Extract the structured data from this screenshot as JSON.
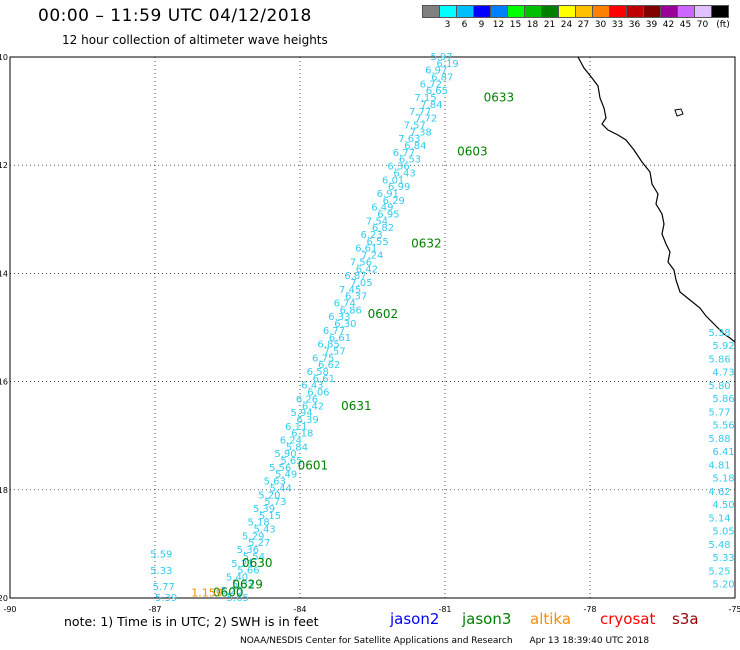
{
  "title": "00:00 – 11:59 UTC 04/12/2018",
  "subtitle": "12 hour collection of altimeter wave heights",
  "legend": {
    "unit": "(ft)",
    "colors": [
      "#808080",
      "#00ffff",
      "#00bfff",
      "#0000ff",
      "#0080ff",
      "#00ff00",
      "#00c000",
      "#008000",
      "#ffff00",
      "#ffc000",
      "#ff8000",
      "#ff0000",
      "#c00000",
      "#800000",
      "#990099",
      "#cc66ff",
      "#e0c0ff",
      "#000000"
    ],
    "labels": [
      "3",
      "6",
      "9",
      "12",
      "15",
      "18",
      "21",
      "24",
      "27",
      "30",
      "33",
      "36",
      "39",
      "42",
      "45",
      "70"
    ]
  },
  "axes": {
    "lon_labels": [
      "-90",
      "-87",
      "-84",
      "-81",
      "-78",
      "-75"
    ],
    "lat_labels": [
      "-10",
      "-12",
      "-14",
      "-16",
      "-18",
      "-20"
    ]
  },
  "track": {
    "color": "#33ccee",
    "heights": [
      "5.97",
      "6.19",
      "6.97",
      "6.87",
      "6.72",
      "6.65",
      "7.15",
      "7.84",
      "7.77",
      "7.72",
      "7.57",
      "7.38",
      "7.63",
      "6.84",
      "6.77",
      "6.53",
      "6.36",
      "6.43",
      "6.01",
      "6.99",
      "6.91",
      "6.29",
      "6.49",
      "6.95",
      "7.54",
      "6.82",
      "6.23",
      "6.55",
      "6.61",
      "7.24",
      "7.56",
      "6.42",
      "6.87",
      "7.05",
      "7.45",
      "6.37",
      "6.74",
      "6.86",
      "6.33",
      "6.30",
      "6.77",
      "6.61",
      "6.85",
      "7.57",
      "6.75",
      "6.62",
      "6.58",
      "6.61",
      "6.43",
      "6.06",
      "6.26",
      "6.42",
      "5.94",
      "6.39",
      "6.11",
      "6.18",
      "6.24",
      "5.84",
      "5.90",
      "5.65",
      "5.56",
      "5.49",
      "5.63",
      "5.44",
      "5.20",
      "5.73",
      "5.39",
      "5.15",
      "5.18",
      "5.43",
      "5.29",
      "5.27",
      "5.36",
      "5.54",
      "5.21",
      "5.66",
      "5.40",
      "5.33",
      "5.25",
      "5.65"
    ]
  },
  "time_labels": [
    {
      "text": "0633",
      "lon": -80.2,
      "lat": -10.75
    },
    {
      "text": "0603",
      "lon": -80.75,
      "lat": -11.75
    },
    {
      "text": "0632",
      "lon": -81.7,
      "lat": -13.45
    },
    {
      "text": "0602",
      "lon": -82.6,
      "lat": -14.75
    },
    {
      "text": "0631",
      "lon": -83.15,
      "lat": -16.45
    },
    {
      "text": "0601",
      "lon": -84.05,
      "lat": -17.55
    },
    {
      "text": "0630",
      "lon": -85.2,
      "lat": -19.35
    },
    {
      "text": "0629",
      "lon": -85.4,
      "lat": -19.75
    },
    {
      "text": "0600",
      "lon": -85.8,
      "lat": -19.9
    }
  ],
  "west_values": {
    "color": "#33ccee",
    "points": [
      {
        "text": "5.59",
        "lon": -87.1,
        "lat": -19.2
      },
      {
        "text": "5.33",
        "lon": -87.1,
        "lat": -19.5
      },
      {
        "text": "5.77",
        "lon": -87.05,
        "lat": -19.8
      },
      {
        "text": "5.39",
        "lon": -87.0,
        "lat": -20.0
      }
    ]
  },
  "altika_value": {
    "text": "1.159",
    "color": "#ff8c00",
    "lon": -86.25,
    "lat": -19.92
  },
  "east_track": {
    "color": "#33ccee",
    "values": [
      "5.38",
      "5.92",
      "5.86",
      "4.73",
      "5.80",
      "5.86",
      "5.77",
      "5.56",
      "5.88",
      "6.41",
      "4.81",
      "5.18",
      "4.62",
      "4.50",
      "5.14",
      "5.05",
      "5.48",
      "5.33",
      "5.25",
      "5.20"
    ]
  },
  "footer_note": "note: 1) Time is in UTC; 2) SWH is in feet",
  "satellites": [
    {
      "name": "jason2",
      "color": "#0000ff"
    },
    {
      "name": "jason3",
      "color": "#008000"
    },
    {
      "name": "altika",
      "color": "#ff8c00"
    },
    {
      "name": "cryosat",
      "color": "#ff0000"
    },
    {
      "name": "s3a",
      "color": "#990000"
    }
  ],
  "credit": {
    "org": "NOAA/NESDIS Center for Satellite Applications and Research",
    "timestamp": "Apr 13 18:39:40 UTC 2018"
  }
}
